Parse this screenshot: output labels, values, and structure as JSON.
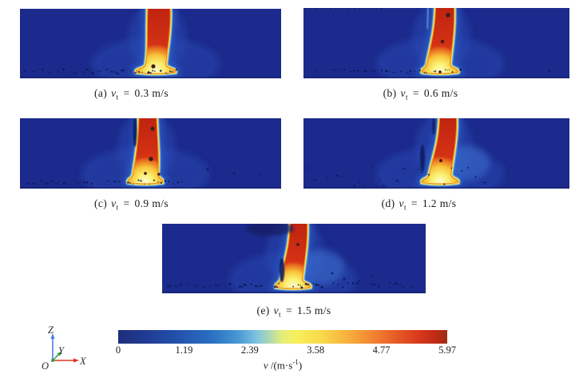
{
  "figure": {
    "panels": [
      {
        "label": "(a)",
        "var": "v",
        "sub": "t",
        "eq": "=",
        "value": "0.3 m/s"
      },
      {
        "label": "(b)",
        "var": "v",
        "sub": "t",
        "eq": "=",
        "value": "0.6 m/s"
      },
      {
        "label": "(c)",
        "var": "v",
        "sub": "t",
        "eq": "=",
        "value": "0.9 m/s"
      },
      {
        "label": "(d)",
        "var": "v",
        "sub": "t",
        "eq": "=",
        "value": "1.2 m/s"
      },
      {
        "label": "(e)",
        "var": "v",
        "sub": "t",
        "eq": "=",
        "value": "1.5 m/s"
      }
    ],
    "colorbar": {
      "ticks": [
        "0",
        "1.19",
        "2.39",
        "3.58",
        "4.77",
        "5.97"
      ],
      "unit_var": "v",
      "unit_mid": " /(m·s",
      "unit_sup": "-1",
      "unit_end": ")"
    },
    "axes": {
      "z": "Z",
      "y": "Y",
      "x": "X",
      "o": "O"
    }
  },
  "chart_data": {
    "type": "heatmap",
    "panels": [
      {
        "label": "(a)",
        "parameter": "v_t",
        "value_m_per_s": 0.3
      },
      {
        "label": "(b)",
        "parameter": "v_t",
        "value_m_per_s": 0.6
      },
      {
        "label": "(c)",
        "parameter": "v_t",
        "value_m_per_s": 0.9
      },
      {
        "label": "(d)",
        "parameter": "v_t",
        "value_m_per_s": 1.2
      },
      {
        "label": "(e)",
        "parameter": "v_t",
        "value_m_per_s": 1.5
      }
    ],
    "colorbar": {
      "label": "v /(m·s⁻¹)",
      "ticks": [
        0,
        1.19,
        2.39,
        3.58,
        4.77,
        5.97
      ],
      "range": [
        0,
        5.97
      ],
      "colors_low_to_high": [
        "#1e2e7c",
        "#2a6ec2",
        "#7cc2e2",
        "#f7f05c",
        "#f18030",
        "#9e2c14"
      ]
    },
    "axes_triad": [
      "Z",
      "Y",
      "X",
      "O"
    ],
    "legend_position": "bottom"
  }
}
